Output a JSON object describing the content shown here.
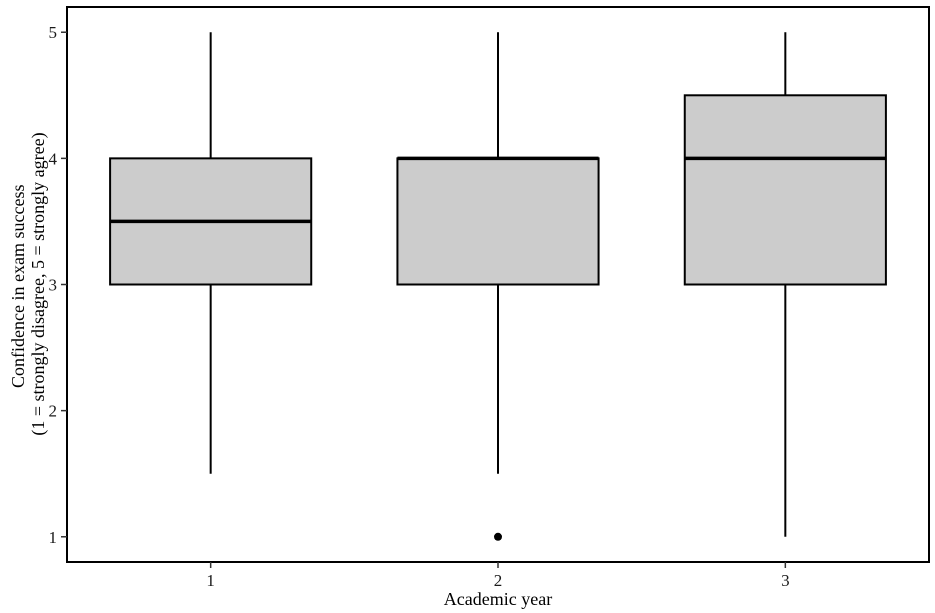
{
  "chart_data": {
    "type": "box",
    "xlabel": "Academic year",
    "ylabel_lines": [
      "Confidence in exam success",
      "(1 = strongly disagree, 5 = strongly agree)"
    ],
    "categories": [
      "1",
      "2",
      "3"
    ],
    "ylim": [
      0.8,
      5.2
    ],
    "yticks": [
      1,
      2,
      3,
      4,
      5
    ],
    "grid": false,
    "box_fill": "#cccccc",
    "line_color": "#000000",
    "boxes": [
      {
        "category": "1",
        "whisker_low": 1.5,
        "q1": 3,
        "median": 3.5,
        "q3": 4,
        "whisker_high": 5,
        "outliers": []
      },
      {
        "category": "2",
        "whisker_low": 1.5,
        "q1": 3,
        "median": 4,
        "q3": 4,
        "whisker_high": 5,
        "outliers": [
          1
        ]
      },
      {
        "category": "3",
        "whisker_low": 1,
        "q1": 3,
        "median": 4,
        "q3": 4.5,
        "whisker_high": 5,
        "outliers": []
      }
    ]
  }
}
